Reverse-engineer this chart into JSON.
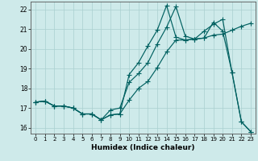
{
  "xlabel": "Humidex (Indice chaleur)",
  "bg_color": "#ceeaea",
  "line_color": "#006060",
  "xlim": [
    -0.5,
    23.5
  ],
  "ylim": [
    15.7,
    22.4
  ],
  "xticks": [
    0,
    1,
    2,
    3,
    4,
    5,
    6,
    7,
    8,
    9,
    10,
    11,
    12,
    13,
    14,
    15,
    16,
    17,
    18,
    19,
    20,
    21,
    22,
    23
  ],
  "yticks": [
    16,
    17,
    18,
    19,
    20,
    21,
    22
  ],
  "line1_x": [
    0,
    1,
    2,
    3,
    4,
    5,
    6,
    7,
    8,
    9,
    10,
    11,
    12,
    13,
    14,
    15,
    16,
    17,
    18,
    19,
    20,
    21,
    22,
    23
  ],
  "line1_y": [
    17.3,
    17.35,
    17.1,
    17.1,
    17.0,
    16.7,
    16.7,
    16.4,
    16.65,
    16.7,
    17.4,
    18.0,
    18.35,
    19.05,
    19.85,
    20.45,
    20.45,
    20.5,
    20.55,
    20.7,
    20.75,
    20.95,
    21.15,
    21.3
  ],
  "line2_x": [
    0,
    1,
    2,
    3,
    4,
    5,
    6,
    7,
    8,
    9,
    10,
    11,
    12,
    13,
    14,
    15,
    16,
    17,
    18,
    19,
    20,
    21,
    22,
    23
  ],
  "line2_y": [
    17.3,
    17.35,
    17.1,
    17.1,
    17.0,
    16.7,
    16.7,
    16.4,
    16.65,
    16.7,
    18.7,
    19.3,
    20.15,
    20.95,
    22.2,
    20.6,
    20.45,
    20.5,
    20.9,
    21.25,
    21.5,
    18.8,
    16.3,
    15.8
  ],
  "line3_x": [
    0,
    1,
    2,
    3,
    4,
    5,
    6,
    7,
    8,
    9,
    10,
    11,
    12,
    13,
    14,
    15,
    16,
    17,
    18,
    19,
    20,
    21,
    22,
    23
  ],
  "line3_y": [
    17.3,
    17.35,
    17.1,
    17.1,
    17.0,
    16.7,
    16.7,
    16.4,
    16.9,
    17.0,
    18.3,
    18.75,
    19.3,
    20.25,
    21.1,
    22.15,
    20.65,
    20.5,
    20.55,
    21.35,
    20.9,
    18.8,
    16.3,
    15.8
  ],
  "markersize": 3.0,
  "linewidth": 0.85
}
